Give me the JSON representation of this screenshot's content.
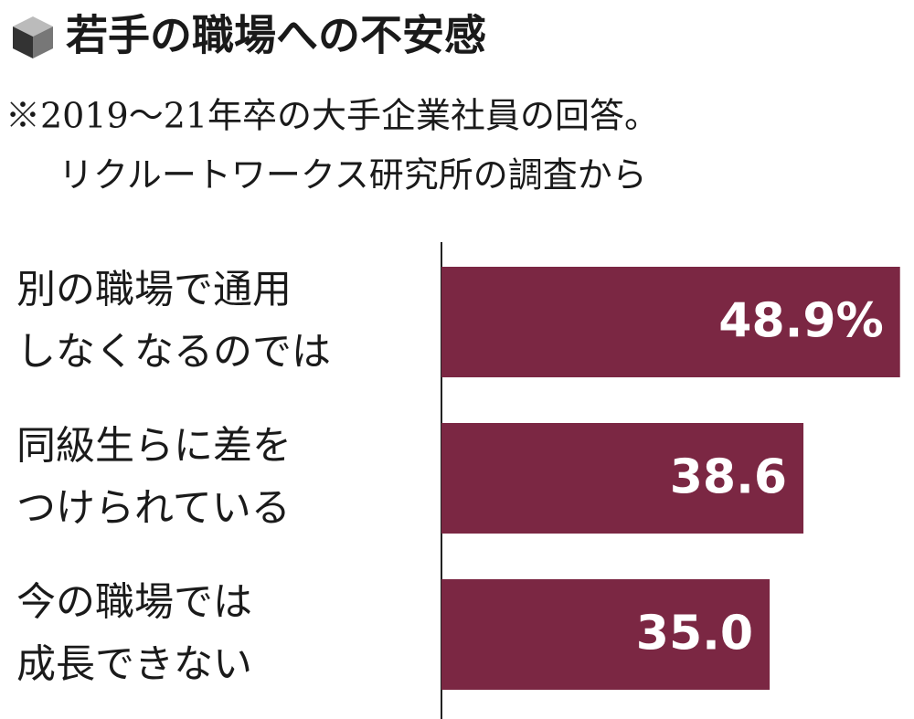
{
  "chart_data": {
    "type": "bar",
    "orientation": "horizontal",
    "title": "若手の職場への不安感",
    "subtitle": [
      "※2019〜21年卒の大手企業社員の回答。",
      "リクルートワークス研究所の調査から"
    ],
    "categories": [
      [
        "別の職場で通用",
        "しなくなるのでは"
      ],
      [
        "同級生らに差を",
        "つけられている"
      ],
      [
        "今の職場では",
        "成長できない"
      ]
    ],
    "values": [
      48.9,
      38.6,
      35
    ],
    "value_labels": [
      "48.9%",
      "38.6",
      "35.0"
    ],
    "color": "#7b2743"
  }
}
